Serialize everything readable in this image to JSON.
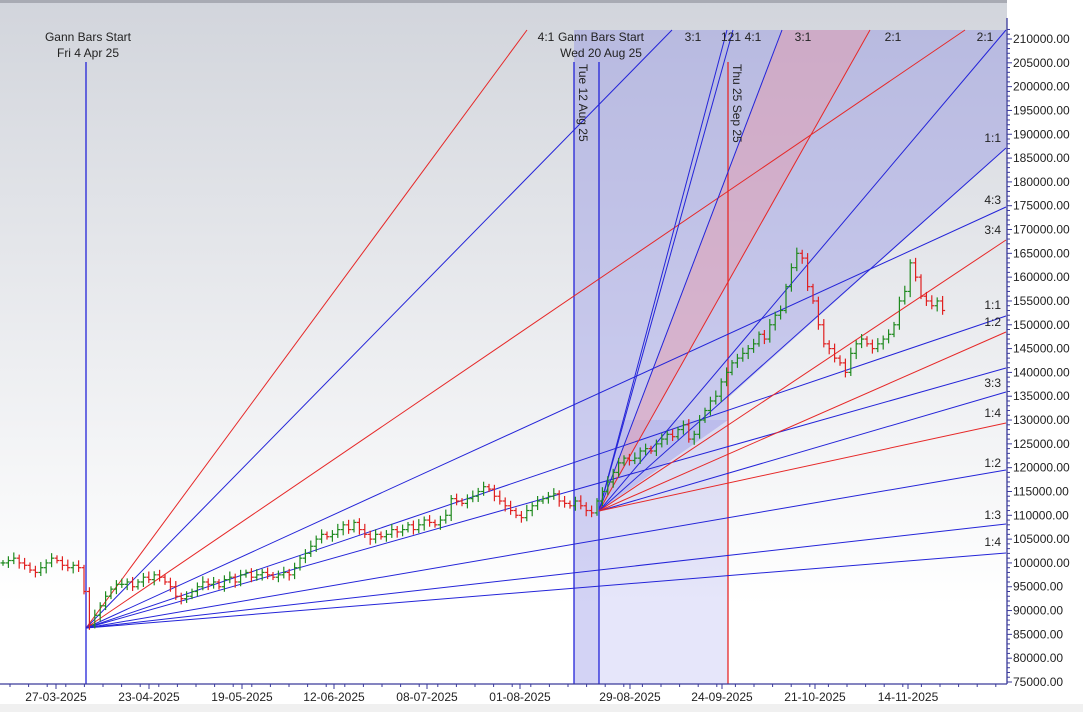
{
  "chart_data": {
    "type": "ohlc",
    "title": "",
    "xlabel": "",
    "ylabel": "",
    "ylim": [
      75000,
      210000
    ],
    "y_tick_step": 5000,
    "y_tick_labels": [
      "75000.00",
      "80000.00",
      "85000.00",
      "90000.00",
      "95000.00",
      "100000.00",
      "105000.00",
      "110000.00",
      "115000.00",
      "120000.00",
      "125000.00",
      "130000.00",
      "135000.00",
      "140000.00",
      "145000.00",
      "150000.00",
      "155000.00",
      "160000.00",
      "165000.00",
      "170000.00",
      "175000.00",
      "180000.00",
      "185000.00",
      "190000.00",
      "195000.00",
      "200000.00",
      "205000.00",
      "210000.00"
    ],
    "x_tick_labels": [
      "27-03-2025",
      "23-04-2025",
      "19-05-2025",
      "12-06-2025",
      "08-07-2025",
      "01-08-2025",
      "29-08-2025",
      "24-09-2025",
      "21-10-2025",
      "14-11-2025"
    ],
    "grid": false,
    "colors": {
      "up": "#1f8a1f",
      "down": "#e02020",
      "gann_blue": "#2424d8",
      "gann_red": "#e62828",
      "fill_blue": "#8c8ce6",
      "fill_red": "#e89aa8"
    },
    "closes": [
      100000,
      100500,
      101000,
      100000,
      99500,
      98500,
      98000,
      99000,
      100000,
      101000,
      100500,
      99500,
      99000,
      99500,
      99000,
      94000,
      87000,
      89000,
      91000,
      93000,
      94500,
      95500,
      95500,
      96000,
      95000,
      96000,
      97000,
      96500,
      97500,
      97000,
      96000,
      95000,
      93000,
      92500,
      93000,
      94000,
      95000,
      96000,
      95500,
      96000,
      95000,
      96500,
      97000,
      96000,
      97500,
      98000,
      97000,
      97500,
      98000,
      97500,
      97000,
      97500,
      98000,
      97500,
      99000,
      101000,
      102000,
      103500,
      105000,
      106000,
      105500,
      106000,
      107000,
      108000,
      107000,
      108500,
      107000,
      106000,
      105000,
      106000,
      105500,
      106000,
      107000,
      106500,
      107000,
      108000,
      107000,
      108000,
      109000,
      108500,
      108000,
      109000,
      110000,
      113500,
      113000,
      112500,
      113500,
      114000,
      115000,
      116000,
      115500,
      114000,
      113000,
      112000,
      111000,
      110000,
      109500,
      111000,
      112000,
      113000,
      113500,
      114000,
      114500,
      113000,
      112500,
      112000,
      113000,
      112000,
      111000,
      110500,
      113000,
      115000,
      117000,
      119000,
      121000,
      122000,
      121500,
      122000,
      123500,
      124000,
      123500,
      125000,
      126000,
      127000,
      126500,
      128000,
      129000,
      126000,
      127000,
      130000,
      132000,
      134000,
      135000,
      138000,
      140000,
      142000,
      143000,
      144000,
      145000,
      146000,
      148000,
      147000,
      150000,
      152000,
      153000,
      158000,
      162000,
      165000,
      164000,
      158000,
      155000,
      150000,
      146000,
      145000,
      143000,
      142000,
      140000,
      144000,
      146000,
      147000,
      146000,
      145000,
      146000,
      147000,
      148000,
      150000,
      155000,
      157000,
      163000,
      160000,
      156000,
      155000,
      154000,
      155000,
      153000
    ],
    "annotations": {
      "start1_title": "Gann Bars Start",
      "start1_date": "Fri 4 Apr 25",
      "start2_title": "Gann Bars Start",
      "start2_date": "Wed 20 Aug 25",
      "marker_aug": "Tue 12 Aug 25",
      "marker_sep": "Thu 25 Sep 25"
    },
    "fan_top_labels": [
      "4:1",
      "3:1",
      "121",
      "4:1",
      "3:1",
      "2:1",
      "2:1"
    ],
    "fan_right_labels": [
      "1:1",
      "4:3",
      "3:4",
      "1:1",
      "1:2",
      "3:3",
      "1:4",
      "1:2",
      "1:3",
      "1:4"
    ]
  }
}
